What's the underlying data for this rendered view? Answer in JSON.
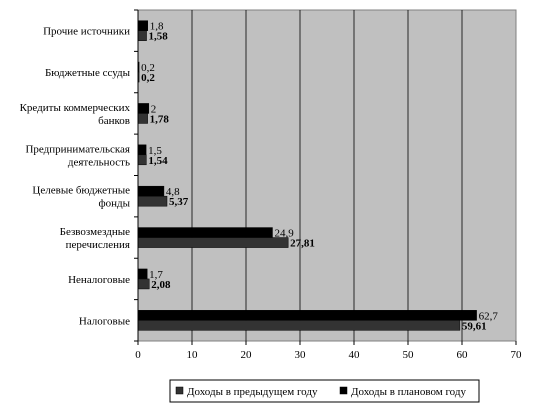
{
  "chart_data": {
    "type": "bar",
    "orientation": "horizontal",
    "categories": [
      [
        "Прочие источники"
      ],
      [
        "Бюджетные ссуды"
      ],
      [
        "Кредиты коммерческих",
        "банков"
      ],
      [
        "Предпринимательская",
        "деятельность"
      ],
      [
        "Целевые бюджетные",
        "фонды"
      ],
      [
        "Безвозмездные",
        "перечисления"
      ],
      [
        "Неналоговые"
      ],
      [
        "Налоговые"
      ]
    ],
    "series": [
      {
        "name": "Доходы в предыдущем году",
        "color": "#333333",
        "values": [
          1.58,
          0.2,
          1.78,
          1.54,
          5.37,
          27.81,
          2.08,
          59.61
        ],
        "labels": [
          "1,58",
          "0,2",
          "1,78",
          "1,54",
          "5,37",
          "27,81",
          "2,08",
          "59,61"
        ]
      },
      {
        "name": "Доходы в плановом году",
        "color": "#000000",
        "values": [
          1.8,
          0.2,
          2,
          1.5,
          4.8,
          24.9,
          1.7,
          62.7
        ],
        "labels": [
          "1,8",
          "0,2",
          "2",
          "1,5",
          "4,8",
          "24,9",
          "1,7",
          "62,7"
        ]
      }
    ],
    "xlim": [
      0,
      70
    ],
    "xticks": [
      "0",
      "10",
      "20",
      "30",
      "40",
      "50",
      "60",
      "70"
    ],
    "xlabel": "",
    "ylabel": "",
    "title": "",
    "grid": true,
    "plot_background": "#c0c0c0",
    "legend_position": "bottom"
  }
}
